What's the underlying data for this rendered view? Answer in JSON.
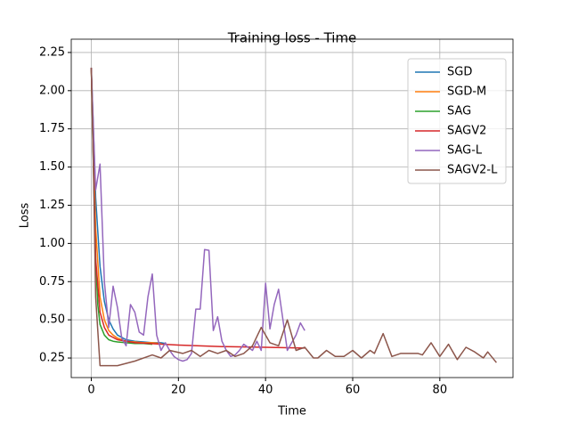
{
  "chart_data": {
    "type": "line",
    "title": "Training loss - Time",
    "xlabel": "Time",
    "ylabel": "Loss",
    "xlim": [
      -4.6,
      96.8
    ],
    "ylim": [
      0.122,
      2.337
    ],
    "xticks": [
      0,
      20,
      40,
      60,
      80
    ],
    "yticks": [
      0.25,
      {
        "value": 0.5,
        "label": "0.50"
      },
      0.75,
      {
        "value": 1.0,
        "label": "1.00"
      },
      1.25,
      {
        "value": 1.5,
        "label": "1.50"
      },
      1.75,
      {
        "value": 2.0,
        "label": "2.00"
      },
      2.25
    ],
    "grid": true,
    "legend": "upper right",
    "series": [
      {
        "name": "SGD",
        "color": "#1f77b4",
        "x": [
          0,
          1,
          2,
          3,
          4,
          5,
          6,
          8,
          10,
          12,
          14,
          16,
          17
        ],
        "values": [
          2.15,
          1.3,
          0.85,
          0.62,
          0.5,
          0.44,
          0.4,
          0.37,
          0.36,
          0.355,
          0.35,
          0.35,
          0.345
        ]
      },
      {
        "name": "SGD-M",
        "color": "#ff7f0e",
        "x": [
          0,
          1,
          2,
          3,
          4,
          5,
          6,
          8,
          10,
          12,
          14,
          16
        ],
        "values": [
          2.15,
          1.1,
          0.65,
          0.5,
          0.43,
          0.4,
          0.38,
          0.36,
          0.355,
          0.35,
          0.35,
          0.345
        ]
      },
      {
        "name": "SAG",
        "color": "#2ca02c",
        "x": [
          0,
          0.5,
          1,
          1.5,
          2,
          3,
          4,
          5,
          6,
          8,
          10,
          12,
          14
        ],
        "values": [
          2.15,
          1.5,
          0.9,
          0.6,
          0.47,
          0.4,
          0.37,
          0.36,
          0.355,
          0.35,
          0.345,
          0.345,
          0.34
        ]
      },
      {
        "name": "SAGV2",
        "color": "#d62728",
        "x": [
          0,
          1,
          2,
          3,
          4,
          6,
          10,
          20,
          30,
          40,
          49
        ],
        "values": [
          2.15,
          0.9,
          0.55,
          0.45,
          0.4,
          0.37,
          0.35,
          0.335,
          0.325,
          0.32,
          0.315
        ]
      },
      {
        "name": "SAG-L",
        "color": "#9467bd",
        "x": [
          0,
          1,
          2,
          3,
          4,
          5,
          6,
          7,
          8,
          9,
          10,
          11,
          12,
          13,
          14,
          15,
          16,
          17,
          18,
          19,
          20,
          21,
          22,
          23,
          24,
          25,
          26,
          27,
          28,
          29,
          30,
          31,
          32,
          33,
          34,
          35,
          36,
          37,
          38,
          39,
          40,
          41,
          42,
          43,
          44,
          45,
          46,
          47,
          48,
          49
        ],
        "values": [
          2.15,
          1.35,
          1.52,
          0.75,
          0.45,
          0.72,
          0.58,
          0.38,
          0.33,
          0.6,
          0.55,
          0.42,
          0.4,
          0.65,
          0.8,
          0.4,
          0.3,
          0.35,
          0.3,
          0.26,
          0.24,
          0.23,
          0.24,
          0.28,
          0.57,
          0.57,
          0.96,
          0.955,
          0.43,
          0.52,
          0.36,
          0.3,
          0.26,
          0.27,
          0.3,
          0.34,
          0.32,
          0.3,
          0.36,
          0.3,
          0.74,
          0.44,
          0.6,
          0.7,
          0.5,
          0.3,
          0.35,
          0.4,
          0.48,
          0.43
        ]
      },
      {
        "name": "SAGV2-L",
        "color": "#8c564b",
        "x": [
          0,
          0.5,
          1,
          2,
          6,
          10,
          14,
          16,
          18,
          21,
          23,
          25,
          27,
          29,
          31,
          33,
          35,
          37,
          39,
          41,
          43,
          45,
          47,
          49,
          51,
          52,
          54,
          56,
          58,
          60,
          62,
          64,
          65,
          67,
          69,
          71,
          73,
          75,
          76,
          78,
          80,
          82,
          84,
          86,
          88,
          90,
          91,
          93
        ],
        "values": [
          2.15,
          1.5,
          0.65,
          0.2,
          0.2,
          0.23,
          0.27,
          0.25,
          0.3,
          0.28,
          0.3,
          0.26,
          0.3,
          0.28,
          0.3,
          0.26,
          0.28,
          0.33,
          0.45,
          0.35,
          0.33,
          0.5,
          0.3,
          0.32,
          0.25,
          0.25,
          0.3,
          0.26,
          0.26,
          0.3,
          0.25,
          0.3,
          0.28,
          0.41,
          0.26,
          0.28,
          0.28,
          0.28,
          0.27,
          0.35,
          0.26,
          0.34,
          0.24,
          0.32,
          0.29,
          0.25,
          0.29,
          0.22
        ]
      }
    ]
  }
}
